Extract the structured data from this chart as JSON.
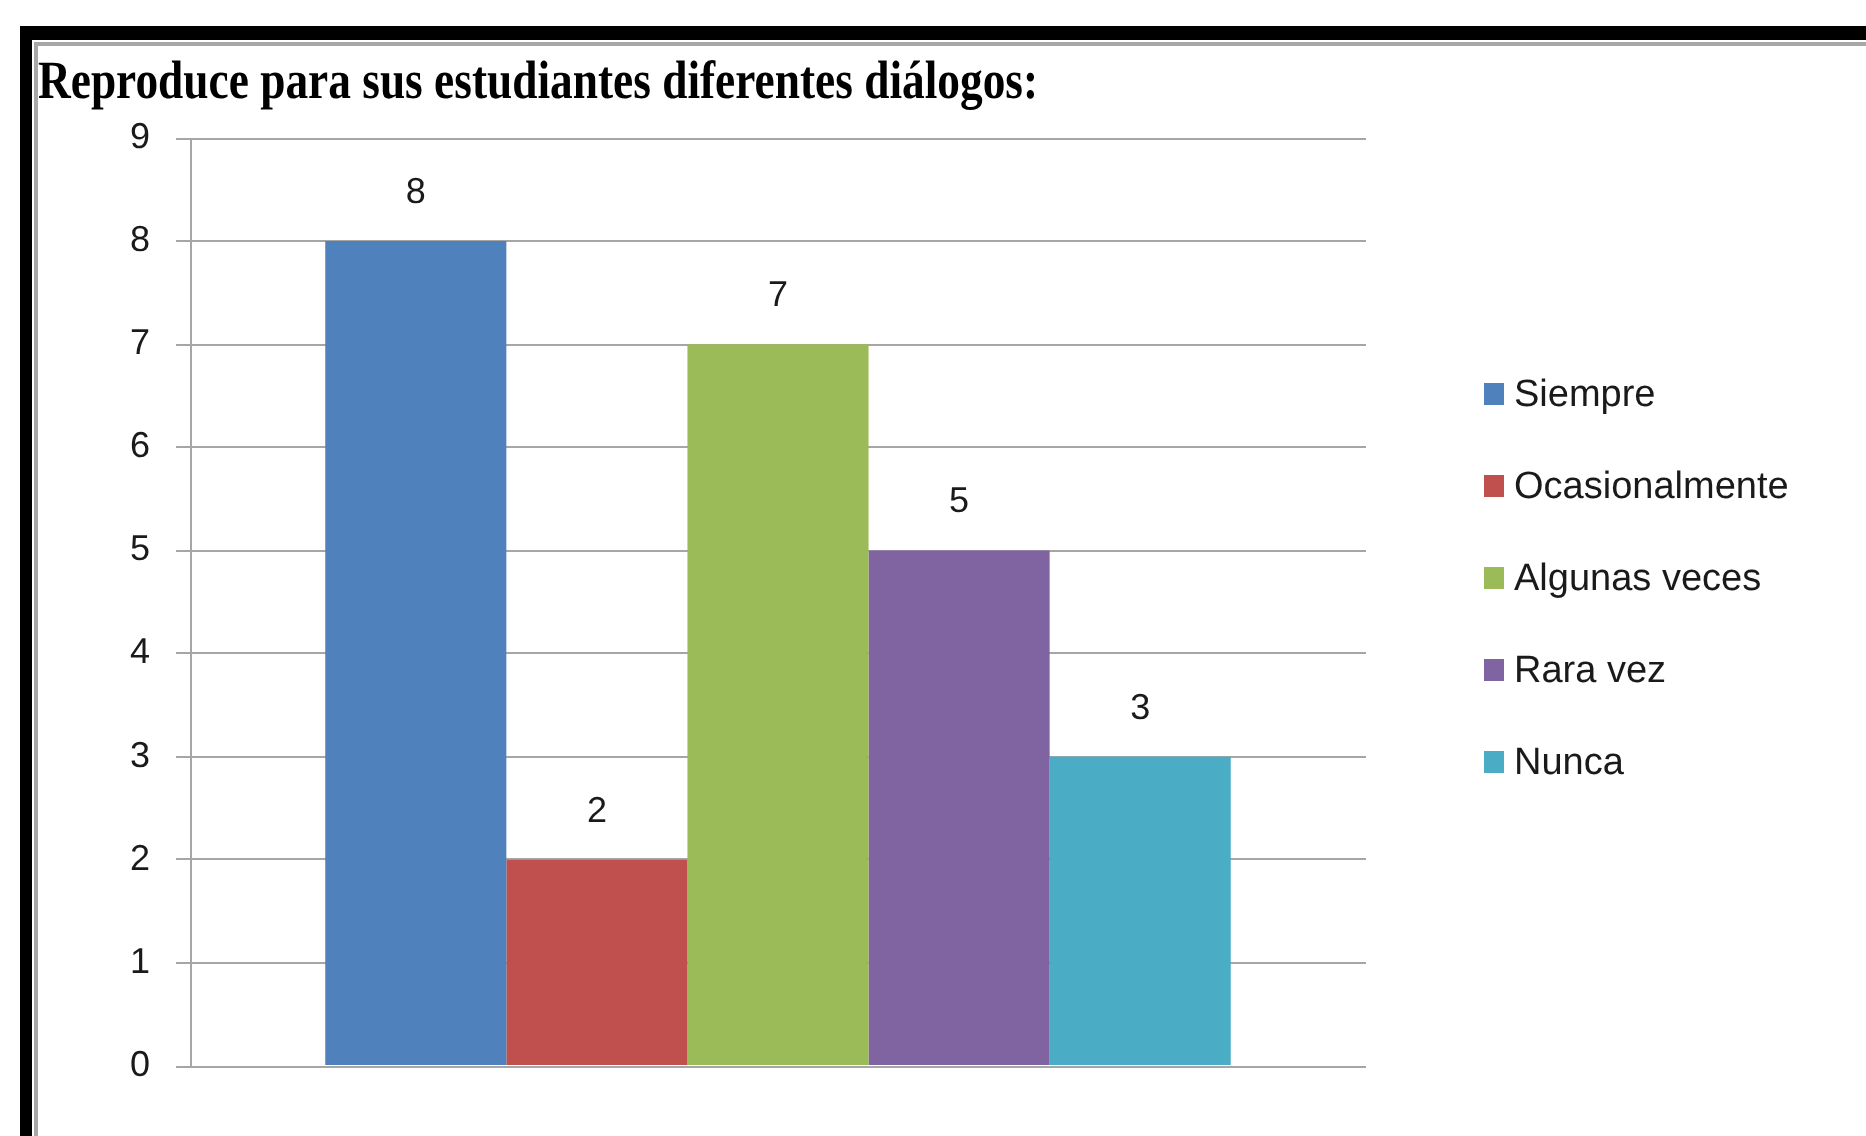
{
  "chart_data": {
    "type": "bar",
    "title": "Reproduce para sus estudiantes diferentes diálogos:",
    "categories": [
      null
    ],
    "series": [
      {
        "name": "Siempre",
        "color": "#4f81bd",
        "values": [
          8
        ]
      },
      {
        "name": "Ocasionalmente",
        "color": "#c0504d",
        "values": [
          2
        ]
      },
      {
        "name": "Algunas veces",
        "color": "#9bbb59",
        "values": [
          7
        ]
      },
      {
        "name": "Rara vez",
        "color": "#8064a2",
        "values": [
          5
        ]
      },
      {
        "name": "Nunca",
        "color": "#4bacc6",
        "values": [
          3
        ]
      }
    ],
    "ylim": [
      0,
      9
    ],
    "yticks": [
      0,
      1,
      2,
      3,
      4,
      5,
      6,
      7,
      8,
      9
    ],
    "grid": "y",
    "legend": "right",
    "data_labels": true
  }
}
